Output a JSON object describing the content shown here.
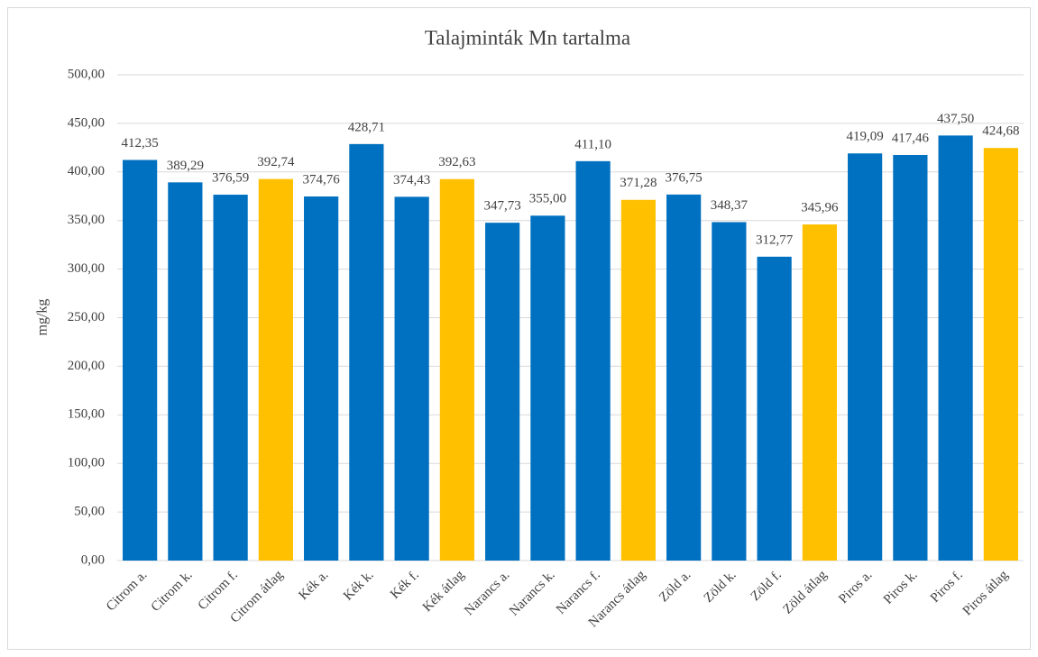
{
  "chart_data": {
    "type": "bar",
    "title": "Talajminták  Mn tartalma",
    "y_label": "mg/kg",
    "categories": [
      "Citrom a.",
      "Citrom k.",
      "Citrom f.",
      "Citrom átlag",
      "Kék a.",
      "Kék k.",
      "Kék f.",
      "Kék átlag",
      "Narancs a.",
      "Narancs k.",
      "Narancs f.",
      "Narancs átlag",
      "Zöld a.",
      "Zöld k.",
      "Zöld f.",
      "Zöld átlag",
      "Piros a.",
      "Piros k.",
      "Piros f.",
      "Piros átlag"
    ],
    "values": [
      412.35,
      389.29,
      376.59,
      392.74,
      374.76,
      428.71,
      374.43,
      392.63,
      347.73,
      355.0,
      411.1,
      371.28,
      376.75,
      348.37,
      312.77,
      345.96,
      419.09,
      417.46,
      437.5,
      424.68
    ],
    "value_labels": [
      "412,35",
      "389,29",
      "376,59",
      "392,74",
      "374,76",
      "428,71",
      "374,43",
      "392,63",
      "347,73",
      "355,00",
      "411,10",
      "371,28",
      "376,75",
      "348,37",
      "312,77",
      "345,96",
      "419,09",
      "417,46",
      "437,50",
      "424,68"
    ],
    "colors": [
      "#0070c0",
      "#0070c0",
      "#0070c0",
      "#ffc000",
      "#0070c0",
      "#0070c0",
      "#0070c0",
      "#ffc000",
      "#0070c0",
      "#0070c0",
      "#0070c0",
      "#ffc000",
      "#0070c0",
      "#0070c0",
      "#0070c0",
      "#ffc000",
      "#0070c0",
      "#0070c0",
      "#0070c0",
      "#ffc000"
    ],
    "ylim": [
      0,
      500
    ],
    "yticks": [
      {
        "value": 0,
        "label": "0,00"
      },
      {
        "value": 50,
        "label": "50,00"
      },
      {
        "value": 100,
        "label": "100,00"
      },
      {
        "value": 150,
        "label": "150,00"
      },
      {
        "value": 200,
        "label": "200,00"
      },
      {
        "value": 250,
        "label": "250,00"
      },
      {
        "value": 300,
        "label": "300,00"
      },
      {
        "value": 350,
        "label": "350,00"
      },
      {
        "value": 400,
        "label": "400,00"
      },
      {
        "value": 450,
        "label": "450,00"
      },
      {
        "value": 500,
        "label": "500,00"
      }
    ],
    "grid": true
  }
}
